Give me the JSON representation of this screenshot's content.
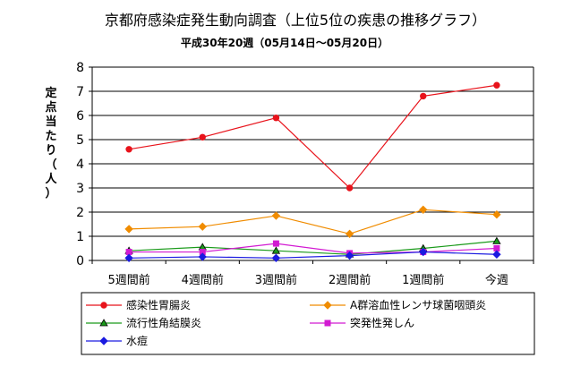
{
  "chart_data": {
    "type": "line",
    "title": "京都府感染症発生動向調査（上位5位の疾患の推移グラフ）",
    "subtitle": "平成30年20週（05月14日～05月20日）",
    "ylabel_chars": [
      "定",
      "点",
      "当",
      "た",
      "り",
      "（",
      "人",
      "）"
    ],
    "ylim": [
      0,
      8
    ],
    "yticks": [
      "0",
      "1",
      "2",
      "3",
      "4",
      "5",
      "6",
      "7",
      "8"
    ],
    "categories": [
      "5週間前",
      "4週間前",
      "3週間前",
      "2週間前",
      "1週間前",
      "今週"
    ],
    "grid": true,
    "legend_position": "bottom",
    "series": [
      {
        "name": "感染性胃腸炎",
        "color": "#e8131b",
        "marker": "circle",
        "values": [
          4.6,
          5.1,
          5.9,
          3.0,
          6.8,
          7.25
        ]
      },
      {
        "name": "A群溶血性レンサ球菌咽頭炎",
        "color": "#f08c00",
        "marker": "diamond",
        "values": [
          1.3,
          1.4,
          1.85,
          1.1,
          2.1,
          1.9
        ]
      },
      {
        "name": "流行性角結膜炎",
        "color": "#1a9a1a",
        "marker": "triangle",
        "values": [
          0.4,
          0.55,
          0.4,
          0.25,
          0.5,
          0.8
        ]
      },
      {
        "name": "突発性発しん",
        "color": "#d21ad2",
        "marker": "square",
        "values": [
          0.35,
          0.35,
          0.7,
          0.3,
          0.35,
          0.5
        ]
      },
      {
        "name": "水痘",
        "color": "#1a1ae0",
        "marker": "diamond",
        "values": [
          0.1,
          0.15,
          0.1,
          0.2,
          0.35,
          0.25
        ]
      }
    ]
  }
}
